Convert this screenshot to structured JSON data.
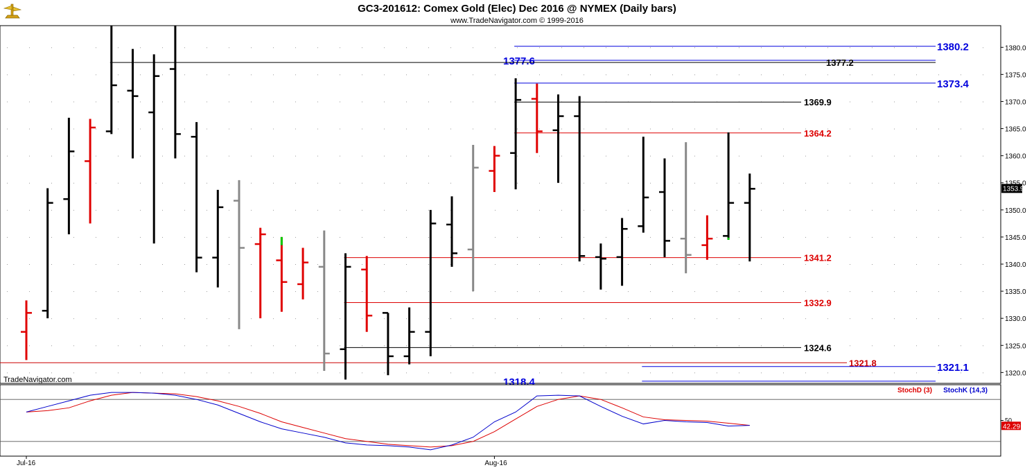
{
  "header": {
    "title": "GC3-201612:  Comex Gold (Elec) Dec 2016 @ NYMEX  (Daily bars)",
    "subtitle": "www.TradeNavigator.com © 1999-2016",
    "watermark": "TradeNavigator.com",
    "logo_icon": "trade-navigator-logo-icon"
  },
  "colors": {
    "up": "#000000",
    "down": "#e00000",
    "neutral": "#888888",
    "green": "#00cc00",
    "blue_level": "#0000dd",
    "red_level": "#dd0000",
    "black_level": "#000000",
    "stochK": "#0000cc",
    "stochD": "#dd0000"
  },
  "chart_data": {
    "type": "ohlc",
    "y_range": [
      1318,
      1384
    ],
    "y_ticks": [
      "1320.0",
      "1325.0",
      "1330.0",
      "1335.0",
      "1340.0",
      "1345.0",
      "1350.0",
      "1355.0",
      "1360.0",
      "1365.0",
      "1370.0",
      "1375.0",
      "1380.0"
    ],
    "x_labels": [
      {
        "label": "Jul-16",
        "bar": 0
      },
      {
        "label": "Aug-16",
        "bar": 22
      }
    ],
    "current_price": "1353.9",
    "bars": [
      {
        "o": 1327.5,
        "h": 1333.3,
        "l": 1322.3,
        "c": 1331.0,
        "color": "down"
      },
      {
        "o": 1331.4,
        "h": 1354.0,
        "l": 1330.0,
        "c": 1351.3,
        "color": "up"
      },
      {
        "o": 1352.0,
        "h": 1367.0,
        "l": 1345.5,
        "c": 1360.8,
        "color": "up"
      },
      {
        "o": 1359.0,
        "h": 1366.8,
        "l": 1347.5,
        "c": 1365.2,
        "color": "down"
      },
      {
        "o": 1364.5,
        "h": 1384.0,
        "l": 1364.0,
        "c": 1373.0,
        "color": "up"
      },
      {
        "o": 1372.0,
        "h": 1379.7,
        "l": 1359.5,
        "c": 1371.0,
        "color": "up"
      },
      {
        "o": 1368.0,
        "h": 1378.7,
        "l": 1343.8,
        "c": 1374.7,
        "color": "up"
      },
      {
        "o": 1376.0,
        "h": 1384.0,
        "l": 1359.5,
        "c": 1364.0,
        "color": "up"
      },
      {
        "o": 1363.5,
        "h": 1366.2,
        "l": 1338.5,
        "c": 1341.2,
        "color": "up"
      },
      {
        "o": 1341.2,
        "h": 1353.7,
        "l": 1335.7,
        "c": 1350.5,
        "color": "up"
      },
      {
        "o": 1351.7,
        "h": 1355.5,
        "l": 1328.0,
        "c": 1343.0,
        "color": "neutral"
      },
      {
        "o": 1343.7,
        "h": 1346.7,
        "l": 1330.0,
        "c": 1345.5,
        "color": "down"
      },
      {
        "o": 1340.7,
        "h": 1345.0,
        "l": 1331.2,
        "c": 1336.7,
        "color": "down",
        "h_color": "green",
        "h_green_to": 1343.5
      },
      {
        "o": 1336.3,
        "h": 1343.0,
        "l": 1333.5,
        "c": 1340.3,
        "color": "down"
      },
      {
        "o": 1339.5,
        "h": 1346.2,
        "l": 1320.3,
        "c": 1323.5,
        "color": "neutral"
      },
      {
        "o": 1324.3,
        "h": 1342.0,
        "l": 1318.7,
        "c": 1339.5,
        "color": "up"
      },
      {
        "o": 1339.0,
        "h": 1341.5,
        "l": 1327.5,
        "c": 1330.5,
        "color": "down"
      },
      {
        "o": 1331.0,
        "h": 1331.0,
        "l": 1319.5,
        "c": 1323.0,
        "color": "up"
      },
      {
        "o": 1323.0,
        "h": 1332.0,
        "l": 1321.5,
        "c": 1327.5,
        "color": "up"
      },
      {
        "o": 1327.5,
        "h": 1350.0,
        "l": 1323.0,
        "c": 1347.5,
        "color": "up"
      },
      {
        "o": 1347.3,
        "h": 1352.5,
        "l": 1339.5,
        "c": 1342.0,
        "color": "up"
      },
      {
        "o": 1342.7,
        "h": 1362.0,
        "l": 1335.0,
        "c": 1357.8,
        "color": "neutral"
      },
      {
        "o": 1357.2,
        "h": 1361.8,
        "l": 1353.3,
        "c": 1360.0,
        "color": "down"
      },
      {
        "o": 1360.5,
        "h": 1374.3,
        "l": 1353.8,
        "c": 1370.3,
        "color": "up"
      },
      {
        "o": 1370.5,
        "h": 1373.3,
        "l": 1360.5,
        "c": 1364.5,
        "color": "down"
      },
      {
        "o": 1364.7,
        "h": 1371.3,
        "l": 1355.0,
        "c": 1367.3,
        "color": "up"
      },
      {
        "o": 1367.3,
        "h": 1371.0,
        "l": 1340.5,
        "c": 1341.5,
        "color": "up"
      },
      {
        "o": 1341.3,
        "h": 1343.8,
        "l": 1335.3,
        "c": 1341.0,
        "color": "up"
      },
      {
        "o": 1341.3,
        "h": 1348.5,
        "l": 1336.0,
        "c": 1346.5,
        "color": "up"
      },
      {
        "o": 1347.0,
        "h": 1363.5,
        "l": 1345.8,
        "c": 1352.3,
        "color": "up"
      },
      {
        "o": 1353.3,
        "h": 1359.5,
        "l": 1341.3,
        "c": 1344.3,
        "color": "up"
      },
      {
        "o": 1344.7,
        "h": 1362.5,
        "l": 1338.3,
        "c": 1341.7,
        "color": "neutral"
      },
      {
        "o": 1343.5,
        "h": 1349.0,
        "l": 1340.8,
        "c": 1344.7,
        "color": "down"
      },
      {
        "o": 1345.2,
        "h": 1364.3,
        "l": 1344.5,
        "c": 1351.3,
        "color": "up",
        "l_color": "green",
        "l_green_from": 1344.5
      },
      {
        "o": 1351.3,
        "h": 1356.7,
        "l": 1340.5,
        "c": 1353.9,
        "color": "up"
      }
    ],
    "levels": [
      {
        "value": 1380.2,
        "label": "1380.2",
        "color": "blue",
        "from_bar": 23,
        "label_pos": "far"
      },
      {
        "value": 1377.6,
        "label": "1377.6",
        "color": "blue",
        "from_bar": 23,
        "label_pos": "left"
      },
      {
        "value": 1377.2,
        "label": "1377.2",
        "color": "black",
        "from_bar": 4,
        "label_pos": "mid"
      },
      {
        "value": 1373.4,
        "label": "1373.4",
        "color": "blue",
        "from_bar": 23,
        "label_pos": "far"
      },
      {
        "value": 1369.9,
        "label": "1369.9",
        "color": "black",
        "from_bar": 23,
        "label_pos": "near"
      },
      {
        "value": 1364.2,
        "label": "1364.2",
        "color": "red",
        "from_bar": 23,
        "label_pos": "near"
      },
      {
        "value": 1341.2,
        "label": "1341.2",
        "color": "red",
        "from_bar": 15,
        "label_pos": "near"
      },
      {
        "value": 1332.9,
        "label": "1332.9",
        "color": "red",
        "from_bar": 15,
        "label_pos": "near"
      },
      {
        "value": 1324.6,
        "label": "1324.6",
        "color": "black",
        "from_bar": 15,
        "label_pos": "near"
      },
      {
        "value": 1321.8,
        "label": "1321.8",
        "color": "darkred",
        "from_bar": -1,
        "label_pos": "mid2"
      },
      {
        "value": 1321.1,
        "label": "1321.1",
        "color": "blue",
        "from_bar": 29,
        "label_pos": "far"
      },
      {
        "value": 1318.4,
        "label": "1318.4",
        "color": "blue",
        "from_bar": 29,
        "label_pos": "left"
      }
    ],
    "stochastic": {
      "y_range": [
        0,
        100
      ],
      "level_lines": [
        80,
        20
      ],
      "tick_label": "50",
      "current_value": "42.29",
      "stochD_label": "StochD (3)",
      "stochK_label": "StochK (14,3)",
      "stochK": [
        62,
        70,
        78,
        86,
        90,
        90,
        89,
        86,
        80,
        72,
        60,
        48,
        38,
        32,
        26,
        18,
        15,
        14,
        12,
        8,
        15,
        26,
        48,
        62,
        85,
        86,
        85,
        70,
        56,
        45,
        50,
        48,
        47,
        42,
        43
      ],
      "stochD": [
        62,
        64,
        68,
        78,
        86,
        90,
        89,
        88,
        84,
        78,
        70,
        60,
        48,
        40,
        32,
        24,
        20,
        16,
        14,
        12,
        14,
        20,
        34,
        52,
        70,
        80,
        85,
        80,
        68,
        55,
        51,
        50,
        49,
        46,
        43
      ]
    }
  }
}
